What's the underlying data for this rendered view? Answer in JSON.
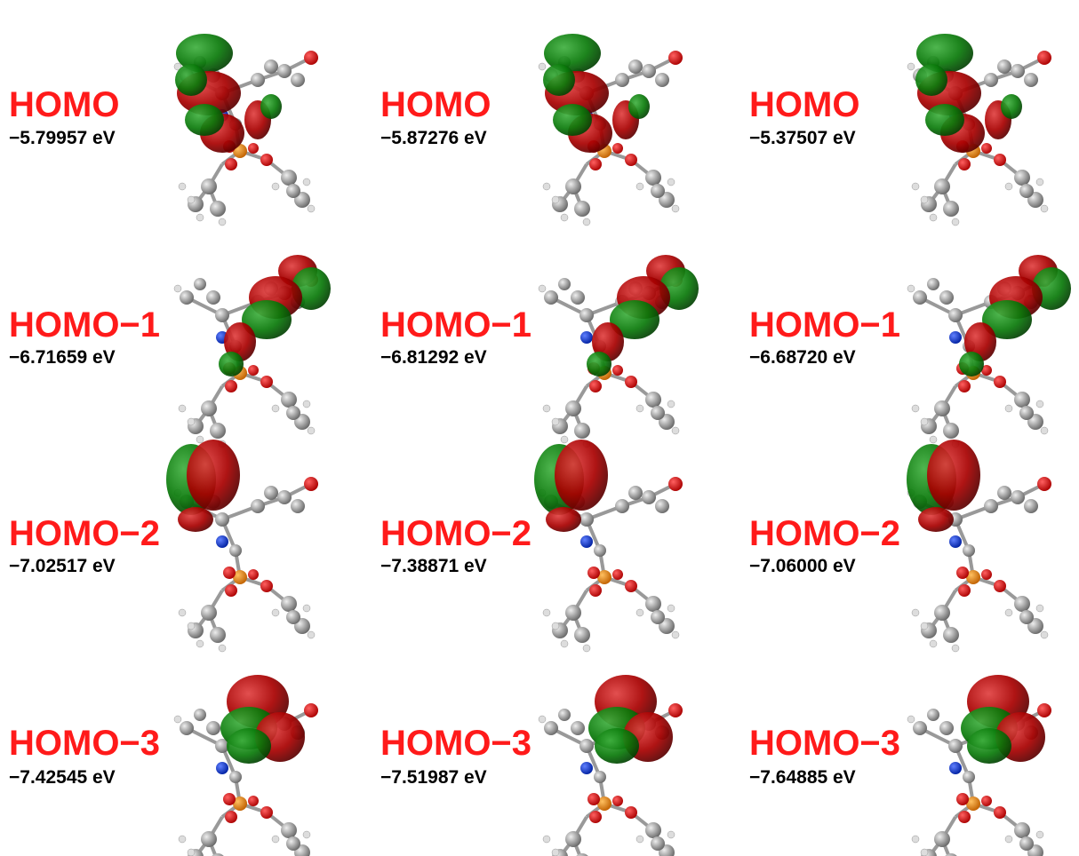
{
  "panels": [
    {
      "orbital": "HOMO",
      "energy": "−5.79957 eV"
    },
    {
      "orbital": "HOMO",
      "energy": "−5.87276 eV"
    },
    {
      "orbital": "HOMO",
      "energy": "−5.37507 eV"
    },
    {
      "orbital": "HOMO−1",
      "energy": "−6.71659 eV"
    },
    {
      "orbital": "HOMO−1",
      "energy": "−6.81292 eV"
    },
    {
      "orbital": "HOMO−1",
      "energy": "−6.68720 eV"
    },
    {
      "orbital": "HOMO−2",
      "energy": "−7.02517 eV"
    },
    {
      "orbital": "HOMO−2",
      "energy": "−7.38871 eV"
    },
    {
      "orbital": "HOMO−2",
      "energy": "−7.06000 eV"
    },
    {
      "orbital": "HOMO−3",
      "energy": "−7.42545 eV"
    },
    {
      "orbital": "HOMO−3",
      "energy": "−7.51987 eV"
    },
    {
      "orbital": "HOMO−3",
      "energy": "−7.64885 eV"
    }
  ]
}
